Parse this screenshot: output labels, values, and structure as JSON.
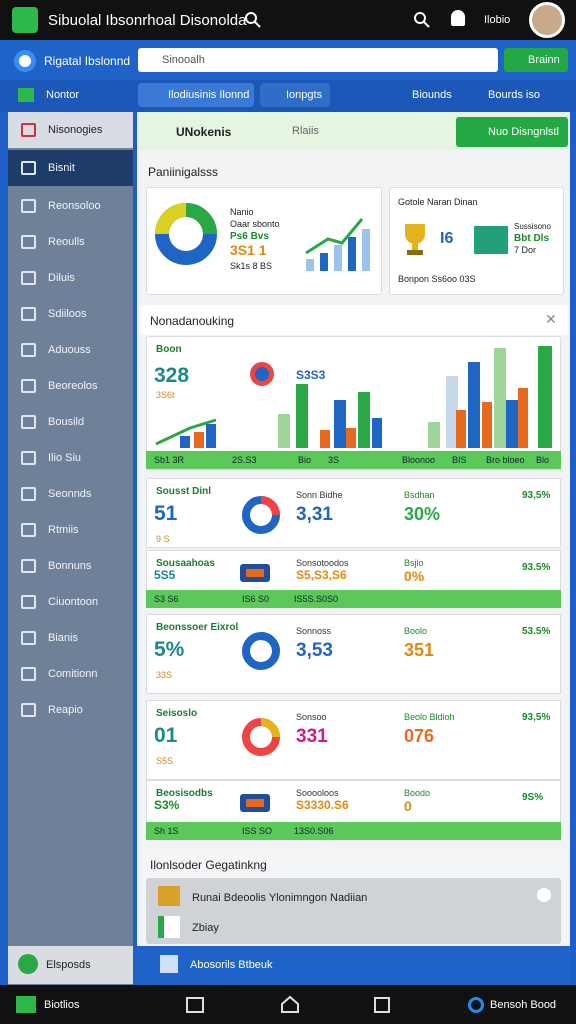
{
  "header": {
    "title": "Sibuolal Ibsonrhoal Disonolda",
    "user": "Ilobio"
  },
  "toolbar": {
    "title": "Rigatal Ibslonnd",
    "search": "Sinooalh",
    "button": "Brainn"
  },
  "tabs": {
    "label": "Nontor",
    "items": [
      "Ilodiusinis Ilonnd",
      "Ionpgts",
      "Biounds",
      "Bourds iso"
    ]
  },
  "sidebar": {
    "items": [
      "Nisonogies",
      "Bisnit",
      "Reonsoloo",
      "Reoulls",
      "Diluis",
      "Sdiiloos",
      "Aduouss",
      "Beoreolos",
      "Bousild",
      "Ilio Siu",
      "Seonnds",
      "Rtmiis",
      "Bonnuns",
      "Ciuontoon",
      "Bianis",
      "Comitionn",
      "Reapio"
    ],
    "footer": "Elsposds"
  },
  "main": {
    "title": "UNokenis",
    "filter": "Rlaiis",
    "button": "Nuo Disngnlstl",
    "overview": {
      "title": "Paniinigalsss",
      "card1": [
        "Nanio",
        "Oaar sbonto",
        "Ps6 Bvs",
        "3S1 1",
        "Sk1s 8 BS"
      ],
      "card2": {
        "title": "Gotole Naran Dinan",
        "value": "I6",
        "right": [
          "Sussisono",
          "Bbt Dls",
          "7 Dor"
        ],
        "footer": "Bonpon Ss6oo 03S"
      }
    },
    "ranking": {
      "title": "Nonadanouking",
      "chart": {
        "label": "Boon",
        "value": "328",
        "sub": "3S6t",
        "top": "S3S3",
        "strip": [
          "Sb1 3R",
          "2S.S3",
          "Bio",
          "3S",
          "Bloonoo",
          "BIS",
          "Bro bloeo",
          "Blo"
        ]
      },
      "rows": [
        {
          "label": "Sousst Dinl",
          "value": "51",
          "sub": "9 S",
          "mid_label": "Sonn Bidhe",
          "mid_value": "3,31",
          "right_label": "Bsdhan",
          "right_value": "30%",
          "far": "93,5%"
        },
        {
          "label": "Sousaahoas",
          "value": "5S5",
          "sub": "",
          "mid_label": "Sonsotoodos",
          "mid_value": "S5,S3,S6",
          "right_label": "Bsjlo",
          "right_value": "0%",
          "far": "93.5%",
          "strip": [
            "S3 S6",
            "IS6 S0",
            "IS5S.S0S0"
          ]
        },
        {
          "label": "Beonssoer Eixrol",
          "value": "5%",
          "sub": "33S",
          "mid_label": "Sonnoss",
          "mid_value": "3,53",
          "right_label": "Boolo",
          "right_value": "351",
          "far": "53.5%"
        },
        {
          "label": "Seisoslo",
          "value": "01",
          "sub": "S5S",
          "mid_label": "Sonsoo",
          "mid_value": "331",
          "right_label": "Beolo Bldioh",
          "right_value": "076",
          "far": "93,5%"
        },
        {
          "label": "Beosisodbs",
          "value": "S3%",
          "sub": "",
          "mid_label": "Sooooloos",
          "mid_value": "S3330.S6",
          "right_label": "Boodo",
          "right_value": "0",
          "far": "9S%",
          "strip": [
            "Sh 1S",
            "ISS SO",
            "13S0.S06"
          ]
        }
      ]
    },
    "settings": {
      "title": "Ilonlsoder Gegatinkng",
      "item": "Runai Bdeoolis Ylonimngon Nadiian",
      "sub": "Zbiay"
    },
    "footer": "Abosorils Btbeuk"
  },
  "nav": {
    "left": "Biotlios",
    "right": "Bensoh Bood"
  }
}
